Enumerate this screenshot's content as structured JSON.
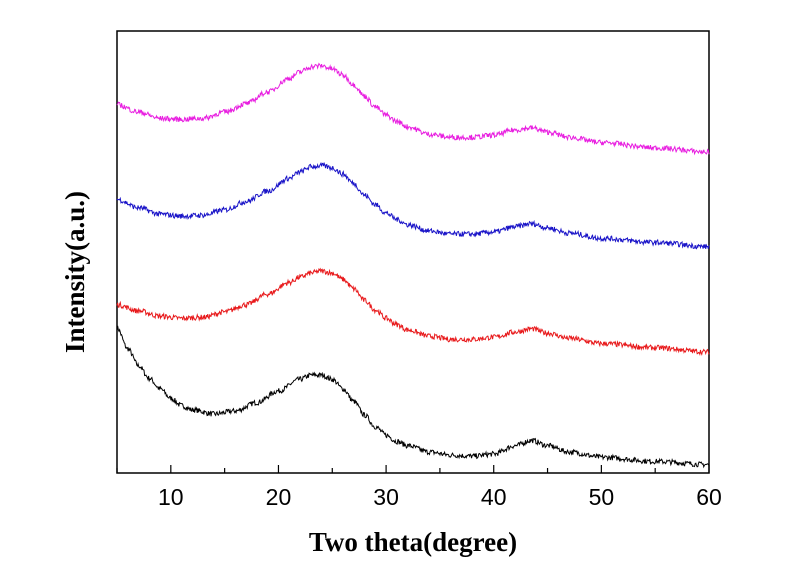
{
  "chart_data": {
    "type": "line",
    "title": "",
    "xlabel": "Two theta(degree)",
    "ylabel": "Intensity(a.u.)",
    "xlim": [
      5,
      60
    ],
    "ylim": [
      0,
      4.2
    ],
    "xticks": [
      10,
      20,
      30,
      40,
      50,
      60
    ],
    "yticks_shown": false,
    "grid": false,
    "legend": "none",
    "series": [
      {
        "color": "#000000",
        "x": [
          5,
          6,
          7,
          8,
          9,
          10,
          11,
          12,
          14,
          16,
          18,
          20,
          22,
          23,
          24,
          25,
          26,
          27,
          28,
          29,
          30,
          31,
          32,
          34,
          36,
          38,
          40,
          42,
          43.5,
          45,
          47,
          50,
          55,
          60
        ],
        "y": [
          1.38,
          1.18,
          1.02,
          0.9,
          0.8,
          0.71,
          0.64,
          0.6,
          0.56,
          0.59,
          0.67,
          0.78,
          0.89,
          0.93,
          0.93,
          0.89,
          0.8,
          0.68,
          0.55,
          0.44,
          0.36,
          0.3,
          0.26,
          0.2,
          0.17,
          0.16,
          0.18,
          0.26,
          0.31,
          0.26,
          0.2,
          0.15,
          0.11,
          0.08
        ]
      },
      {
        "color": "#e8191b",
        "x": [
          5,
          7,
          9,
          11,
          13,
          15,
          17,
          19,
          21,
          22,
          23,
          24,
          25,
          26,
          27,
          28,
          29,
          30,
          31,
          32,
          34,
          36,
          38,
          40,
          42,
          43.5,
          45,
          47,
          50,
          55,
          60
        ],
        "y": [
          1.6,
          1.54,
          1.49,
          1.47,
          1.48,
          1.53,
          1.6,
          1.7,
          1.81,
          1.86,
          1.9,
          1.92,
          1.9,
          1.84,
          1.75,
          1.64,
          1.55,
          1.47,
          1.41,
          1.36,
          1.3,
          1.27,
          1.27,
          1.29,
          1.34,
          1.37,
          1.33,
          1.28,
          1.23,
          1.19,
          1.15
        ]
      },
      {
        "color": "#1a14c8",
        "x": [
          5,
          7,
          9,
          11,
          13,
          15,
          17,
          19,
          21,
          22,
          23,
          24,
          25,
          26,
          27,
          28,
          29,
          30,
          31,
          32,
          34,
          36,
          38,
          40,
          42,
          43.5,
          45,
          47,
          50,
          55,
          60
        ],
        "y": [
          2.6,
          2.52,
          2.46,
          2.44,
          2.45,
          2.5,
          2.58,
          2.68,
          2.8,
          2.86,
          2.91,
          2.92,
          2.9,
          2.84,
          2.75,
          2.64,
          2.55,
          2.47,
          2.41,
          2.36,
          2.3,
          2.27,
          2.27,
          2.29,
          2.34,
          2.37,
          2.33,
          2.28,
          2.23,
          2.19,
          2.15
        ]
      },
      {
        "color": "#e81ee0",
        "x": [
          5,
          7,
          9,
          11,
          13,
          15,
          17,
          19,
          21,
          22,
          23,
          24,
          25,
          26,
          27,
          28,
          29,
          30,
          31,
          32,
          34,
          36,
          38,
          40,
          42,
          43.5,
          45,
          47,
          50,
          55,
          60
        ],
        "y": [
          3.5,
          3.43,
          3.37,
          3.36,
          3.37,
          3.43,
          3.51,
          3.62,
          3.75,
          3.81,
          3.86,
          3.87,
          3.84,
          3.78,
          3.69,
          3.58,
          3.48,
          3.4,
          3.34,
          3.29,
          3.22,
          3.19,
          3.19,
          3.21,
          3.26,
          3.28,
          3.24,
          3.19,
          3.14,
          3.09,
          3.05
        ]
      }
    ]
  }
}
